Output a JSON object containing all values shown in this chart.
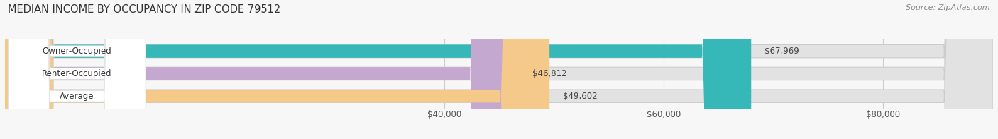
{
  "title": "MEDIAN INCOME BY OCCUPANCY IN ZIP CODE 79512",
  "source": "Source: ZipAtlas.com",
  "categories": [
    "Owner-Occupied",
    "Renter-Occupied",
    "Average"
  ],
  "values": [
    67969,
    46812,
    49602
  ],
  "bar_colors": [
    "#36b8b8",
    "#c4a8d0",
    "#f5c98a"
  ],
  "label_bg_color": "#ffffff",
  "bar_bg_color": "#e2e2e2",
  "value_labels": [
    "$67,969",
    "$46,812",
    "$49,602"
  ],
  "x_ticks": [
    40000,
    60000,
    80000
  ],
  "x_tick_labels": [
    "$40,000",
    "$60,000",
    "$80,000"
  ],
  "xmin": 0,
  "xmax": 90000,
  "title_fontsize": 10.5,
  "label_fontsize": 8.5,
  "tick_fontsize": 8.5,
  "source_fontsize": 8,
  "bg_color": "#f7f7f7"
}
